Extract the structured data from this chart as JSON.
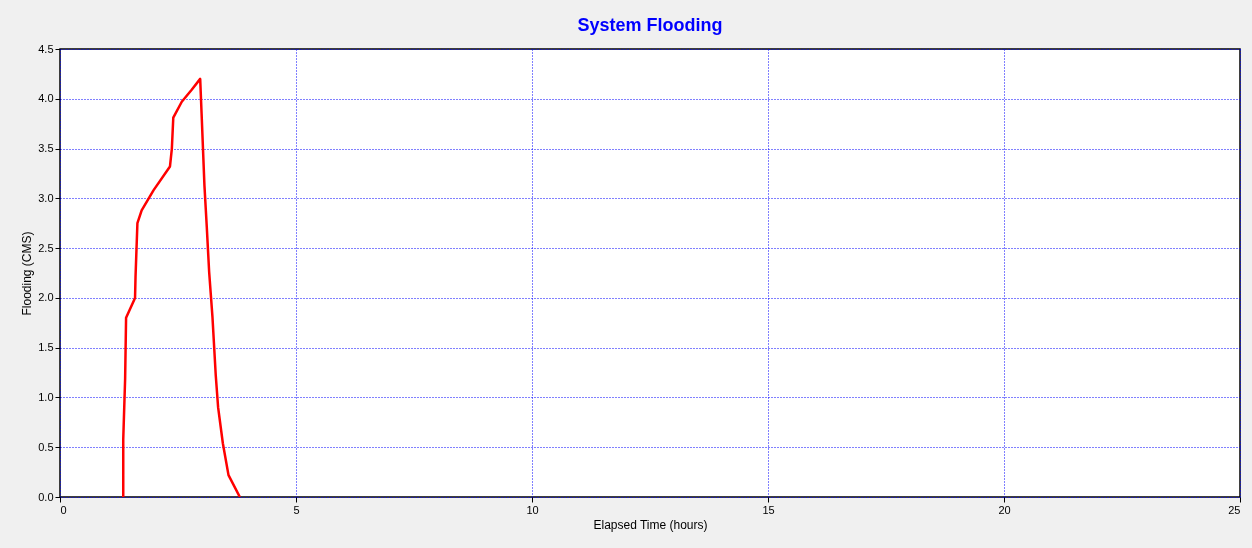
{
  "chart_data": {
    "type": "line",
    "title": "System Flooding",
    "xlabel": "Elapsed Time (hours)",
    "ylabel": "Flooding (CMS)",
    "series": [
      {
        "color": "#ff0000",
        "x": [
          1.34,
          1.34,
          1.38,
          1.4,
          1.59,
          1.6,
          1.64,
          1.73,
          1.98,
          2.33,
          2.37,
          2.4,
          2.58,
          2.79,
          2.97,
          3.0,
          3.06,
          3.11,
          3.16,
          3.23,
          3.3,
          3.35,
          3.45,
          3.57,
          3.81
        ],
        "values": [
          0,
          0.58,
          1.19,
          1.8,
          2.0,
          2.21,
          2.75,
          2.88,
          3.08,
          3.32,
          3.5,
          3.81,
          3.97,
          4.09,
          4.2,
          3.85,
          3.13,
          2.71,
          2.26,
          1.81,
          1.22,
          0.9,
          0.54,
          0.22,
          0
        ]
      }
    ],
    "xlim": [
      0,
      25
    ],
    "xticks": [
      0,
      5,
      10,
      15,
      20,
      25
    ],
    "ylim": [
      0,
      4.5
    ],
    "yticks": [
      {
        "value": 0,
        "label": "0.0"
      },
      {
        "value": 0.5,
        "label": "0.5"
      },
      {
        "value": 1,
        "label": "1.0"
      },
      {
        "value": 1.5,
        "label": "1.5"
      },
      {
        "value": 2,
        "label": "2.0"
      },
      {
        "value": 2.5,
        "label": "2.5"
      },
      {
        "value": 3,
        "label": "3.0"
      },
      {
        "value": 3.5,
        "label": "3.5"
      },
      {
        "value": 4,
        "label": "4.0"
      },
      {
        "value": 4.5,
        "label": "4.5"
      }
    ],
    "grid": true,
    "marker": "none",
    "line_style": "solid"
  }
}
